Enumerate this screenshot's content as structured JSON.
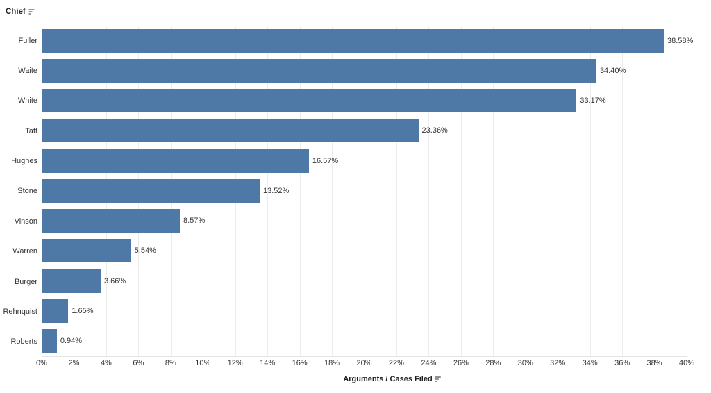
{
  "header": {
    "row_field_label": "Chief"
  },
  "axis": {
    "title": "Arguments / Cases Filed"
  },
  "colors": {
    "bar": "#4e79a7",
    "gridline": "#ececec",
    "text": "#333333"
  },
  "chart_data": {
    "type": "bar",
    "orientation": "horizontal",
    "title": "",
    "xlabel": "Arguments / Cases Filed",
    "ylabel": "Chief",
    "categories": [
      "Fuller",
      "Waite",
      "White",
      "Taft",
      "Hughes",
      "Stone",
      "Vinson",
      "Warren",
      "Burger",
      "Rehnquist",
      "Roberts"
    ],
    "values": [
      38.58,
      34.4,
      33.17,
      23.36,
      16.57,
      13.52,
      8.57,
      5.54,
      3.66,
      1.65,
      0.94
    ],
    "value_labels": [
      "38.58%",
      "34.40%",
      "33.17%",
      "23.36%",
      "16.57%",
      "13.52%",
      "8.57%",
      "5.54%",
      "3.66%",
      "1.65%",
      "0.94%"
    ],
    "xlim": [
      0,
      40
    ],
    "x_tick_step": 2,
    "x_tick_labels": [
      "0%",
      "2%",
      "4%",
      "6%",
      "8%",
      "10%",
      "12%",
      "14%",
      "16%",
      "18%",
      "20%",
      "22%",
      "24%",
      "26%",
      "28%",
      "30%",
      "32%",
      "34%",
      "36%",
      "38%",
      "40%"
    ],
    "grid": "vertical",
    "legend": "none",
    "bar_color": "#4e79a7"
  }
}
